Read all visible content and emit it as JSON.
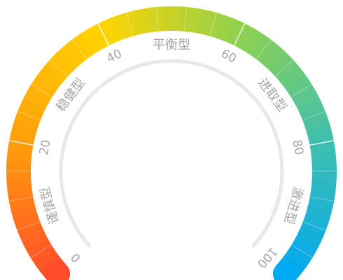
{
  "gauge": {
    "min": 0,
    "max": 100,
    "ticks": [
      {
        "value": 0,
        "label": "0"
      },
      {
        "value": 20,
        "label": "20"
      },
      {
        "value": 40,
        "label": "40"
      },
      {
        "value": 60,
        "label": "60"
      },
      {
        "value": 80,
        "label": "80"
      },
      {
        "value": 100,
        "label": "100"
      }
    ],
    "categories": [
      {
        "value": 10,
        "label": "谨慎型"
      },
      {
        "value": 30,
        "label": "稳健型"
      },
      {
        "value": 50,
        "label": "平衡型"
      },
      {
        "value": 70,
        "label": "进取型"
      },
      {
        "value": 90,
        "label": "激进型"
      }
    ],
    "color_stops": [
      "#ff4b2b",
      "#ff9f0a",
      "#ffd400",
      "#8ed14f",
      "#3fbfb0",
      "#00a8f0"
    ],
    "track_color": "#e8e8e8"
  }
}
